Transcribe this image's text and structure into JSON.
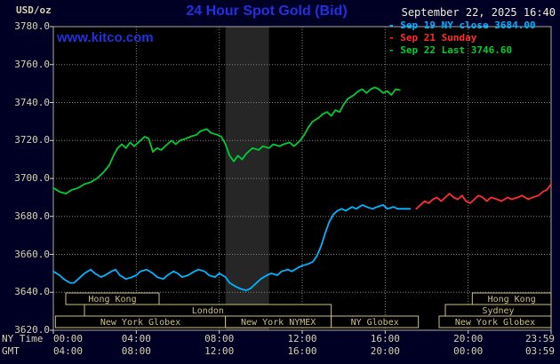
{
  "header": {
    "unit_label": "USD/oz",
    "title": "24 Hour Spot Gold (Bid)",
    "datetime": "September 22, 2025 16:40",
    "watermark": "www.kitco.com"
  },
  "colors": {
    "background": "#000024",
    "plot_background": "#000000",
    "grid": "#858585",
    "frame": "#a8a8a8",
    "axis_text": "#d9d2ae",
    "session_box": "#cdbe84",
    "title_blue": "#2230e0",
    "date_text": "#f2edda",
    "band": "#262626"
  },
  "legend": [
    {
      "label": "- Sep 19 NY close 3684.00",
      "color": "#00b4ff"
    },
    {
      "label": "- Sep 21 Sunday",
      "color": "#ff2e2e"
    },
    {
      "label": "- Sep 22 Last 3746.60",
      "color": "#00cc33"
    }
  ],
  "axes": {
    "y_ticks": [
      "3780.0",
      "3760.0",
      "3740.0",
      "3720.0",
      "3700.0",
      "3680.0",
      "3660.0",
      "3640.0",
      "3620.0"
    ],
    "x_tick_hours": [
      0,
      4,
      8,
      12,
      16,
      20,
      24
    ],
    "x_rows": [
      {
        "label": "NY Time",
        "ticks": [
          "00:00",
          "04:00",
          "08:00",
          "12:00",
          "16:00",
          "20:00",
          "23:59"
        ]
      },
      {
        "label": "GMT",
        "ticks": [
          "04:00",
          "08:00",
          "12:00",
          "16:00",
          "20:00",
          "00:00",
          "03:59"
        ]
      }
    ]
  },
  "sessions": [
    {
      "row": 0,
      "start": 0.6,
      "end": 5.1,
      "label": "Hong Kong"
    },
    {
      "row": 0,
      "start": 20.2,
      "end": 24,
      "label": "Hong Kong"
    },
    {
      "row": 1,
      "start": 1.5,
      "end": 13.4,
      "label": "London"
    },
    {
      "row": 1,
      "start": 18.9,
      "end": 24,
      "label": "Sydney"
    },
    {
      "row": 2,
      "start": 0.1,
      "end": 8.3,
      "label": "New York Globex"
    },
    {
      "row": 2,
      "start": 8.3,
      "end": 13.4,
      "label": "New York NYMEX"
    },
    {
      "row": 2,
      "start": 13.4,
      "end": 17.6,
      "label": "NY Globex"
    },
    {
      "row": 2,
      "start": 18.6,
      "end": 24,
      "label": "New York Globex"
    }
  ],
  "chart_data": {
    "type": "line",
    "title": "24 Hour Spot Gold (Bid)",
    "xlabel": "NY Time (hours)",
    "ylabel": "USD/oz",
    "ylim": [
      3620,
      3780
    ],
    "xlim": [
      0,
      24
    ],
    "y_gridline_step": 20,
    "x_gridline_hours": [
      4,
      8,
      12,
      16,
      20
    ],
    "shaded_band_hours": [
      8.3,
      10.4
    ],
    "grid": true,
    "legend_position": "top-right",
    "series": [
      {
        "name": "Sep 19 NY close",
        "color": "#00b4ff",
        "close": 3684.0,
        "points": [
          [
            0,
            3651
          ],
          [
            0.3,
            3649
          ],
          [
            0.5,
            3647
          ],
          [
            0.8,
            3645
          ],
          [
            1,
            3645
          ],
          [
            1.2,
            3647
          ],
          [
            1.5,
            3650
          ],
          [
            1.8,
            3652
          ],
          [
            2,
            3650
          ],
          [
            2.3,
            3648
          ],
          [
            2.5,
            3649
          ],
          [
            2.8,
            3651
          ],
          [
            3,
            3652
          ],
          [
            3.2,
            3649
          ],
          [
            3.5,
            3647
          ],
          [
            3.8,
            3648
          ],
          [
            4,
            3649
          ],
          [
            4.2,
            3651
          ],
          [
            4.5,
            3652
          ],
          [
            4.8,
            3650
          ],
          [
            5,
            3648
          ],
          [
            5.3,
            3647
          ],
          [
            5.5,
            3649
          ],
          [
            5.8,
            3651
          ],
          [
            6,
            3650
          ],
          [
            6.2,
            3648
          ],
          [
            6.5,
            3649
          ],
          [
            6.8,
            3651
          ],
          [
            7,
            3652
          ],
          [
            7.3,
            3651
          ],
          [
            7.5,
            3649
          ],
          [
            7.8,
            3648
          ],
          [
            8,
            3650
          ],
          [
            8.3,
            3648
          ],
          [
            8.5,
            3645
          ],
          [
            8.8,
            3643
          ],
          [
            9,
            3642
          ],
          [
            9.3,
            3641
          ],
          [
            9.5,
            3642
          ],
          [
            9.8,
            3645
          ],
          [
            10,
            3647
          ],
          [
            10.3,
            3649
          ],
          [
            10.5,
            3650
          ],
          [
            10.8,
            3649
          ],
          [
            11,
            3651
          ],
          [
            11.3,
            3652
          ],
          [
            11.5,
            3651
          ],
          [
            11.8,
            3653
          ],
          [
            12,
            3654
          ],
          [
            12.3,
            3655
          ],
          [
            12.5,
            3656
          ],
          [
            12.7,
            3659
          ],
          [
            12.9,
            3664
          ],
          [
            13.1,
            3671
          ],
          [
            13.3,
            3677
          ],
          [
            13.5,
            3681
          ],
          [
            13.7,
            3683
          ],
          [
            13.9,
            3684
          ],
          [
            14.1,
            3683
          ],
          [
            14.4,
            3685
          ],
          [
            14.6,
            3684
          ],
          [
            14.9,
            3686
          ],
          [
            15.1,
            3685
          ],
          [
            15.4,
            3684
          ],
          [
            15.6,
            3685
          ],
          [
            15.9,
            3686
          ],
          [
            16.1,
            3684
          ],
          [
            16.4,
            3685
          ],
          [
            16.6,
            3684
          ],
          [
            16.9,
            3684
          ],
          [
            17.2,
            3684
          ]
        ]
      },
      {
        "name": "Sep 21 Sunday",
        "color": "#ff2e2e",
        "points": [
          [
            17.5,
            3684
          ],
          [
            17.7,
            3686
          ],
          [
            17.9,
            3688
          ],
          [
            18.1,
            3687
          ],
          [
            18.3,
            3689
          ],
          [
            18.5,
            3690
          ],
          [
            18.7,
            3688
          ],
          [
            18.9,
            3690
          ],
          [
            19.1,
            3692
          ],
          [
            19.3,
            3690
          ],
          [
            19.5,
            3689
          ],
          [
            19.7,
            3691
          ],
          [
            19.9,
            3688
          ],
          [
            20.1,
            3687
          ],
          [
            20.3,
            3689
          ],
          [
            20.5,
            3691
          ],
          [
            20.7,
            3690
          ],
          [
            20.9,
            3688
          ],
          [
            21.1,
            3690
          ],
          [
            21.4,
            3689
          ],
          [
            21.6,
            3688
          ],
          [
            21.9,
            3690
          ],
          [
            22.1,
            3689
          ],
          [
            22.4,
            3690
          ],
          [
            22.6,
            3691
          ],
          [
            22.9,
            3689
          ],
          [
            23.1,
            3690
          ],
          [
            23.4,
            3691
          ],
          [
            23.6,
            3693
          ],
          [
            23.8,
            3694
          ],
          [
            24,
            3697
          ]
        ]
      },
      {
        "name": "Sep 22 Last",
        "color": "#00cc33",
        "last": 3746.6,
        "points": [
          [
            0,
            3695
          ],
          [
            0.3,
            3693
          ],
          [
            0.6,
            3692
          ],
          [
            0.9,
            3694
          ],
          [
            1.2,
            3695
          ],
          [
            1.5,
            3697
          ],
          [
            1.8,
            3698
          ],
          [
            2.1,
            3700
          ],
          [
            2.4,
            3703
          ],
          [
            2.7,
            3707
          ],
          [
            2.9,
            3712
          ],
          [
            3.1,
            3716
          ],
          [
            3.3,
            3718
          ],
          [
            3.5,
            3716
          ],
          [
            3.7,
            3719
          ],
          [
            3.9,
            3717
          ],
          [
            4.1,
            3719
          ],
          [
            4.4,
            3722
          ],
          [
            4.6,
            3721
          ],
          [
            4.8,
            3714
          ],
          [
            5,
            3716
          ],
          [
            5.2,
            3715
          ],
          [
            5.5,
            3718
          ],
          [
            5.7,
            3720
          ],
          [
            5.9,
            3718
          ],
          [
            6.1,
            3720
          ],
          [
            6.4,
            3721
          ],
          [
            6.6,
            3722
          ],
          [
            6.9,
            3723
          ],
          [
            7.1,
            3725
          ],
          [
            7.4,
            3726
          ],
          [
            7.6,
            3724
          ],
          [
            7.9,
            3723
          ],
          [
            8.1,
            3722
          ],
          [
            8.3,
            3718
          ],
          [
            8.5,
            3712
          ],
          [
            8.7,
            3709
          ],
          [
            8.9,
            3712
          ],
          [
            9.1,
            3710
          ],
          [
            9.3,
            3713
          ],
          [
            9.6,
            3716
          ],
          [
            9.9,
            3715
          ],
          [
            10.1,
            3717
          ],
          [
            10.4,
            3716
          ],
          [
            10.6,
            3718
          ],
          [
            10.9,
            3717
          ],
          [
            11.1,
            3718
          ],
          [
            11.4,
            3719
          ],
          [
            11.6,
            3717
          ],
          [
            11.9,
            3720
          ],
          [
            12.1,
            3723
          ],
          [
            12.3,
            3727
          ],
          [
            12.5,
            3730
          ],
          [
            12.8,
            3732
          ],
          [
            13,
            3734
          ],
          [
            13.2,
            3735
          ],
          [
            13.4,
            3733
          ],
          [
            13.6,
            3736
          ],
          [
            13.8,
            3735
          ],
          [
            14,
            3739
          ],
          [
            14.2,
            3742
          ],
          [
            14.5,
            3744
          ],
          [
            14.7,
            3746
          ],
          [
            14.9,
            3747
          ],
          [
            15.1,
            3745
          ],
          [
            15.3,
            3747
          ],
          [
            15.5,
            3748
          ],
          [
            15.7,
            3747
          ],
          [
            15.9,
            3745
          ],
          [
            16.1,
            3746
          ],
          [
            16.3,
            3744
          ],
          [
            16.5,
            3747
          ],
          [
            16.7,
            3746.6
          ]
        ]
      }
    ]
  }
}
